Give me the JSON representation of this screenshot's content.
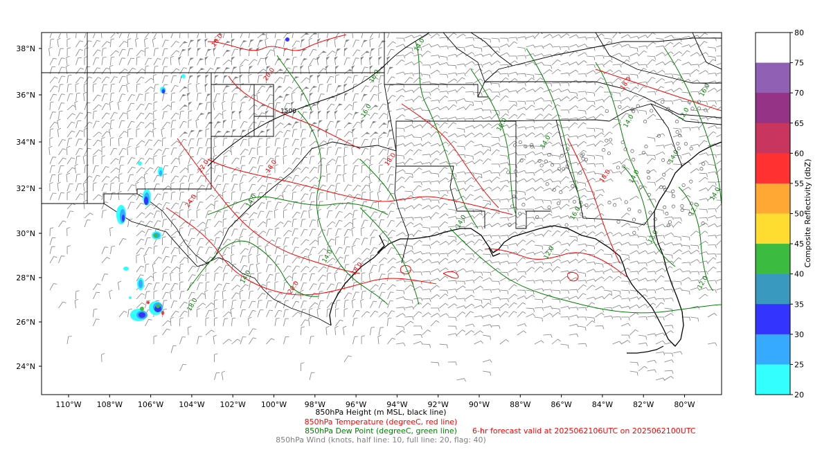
{
  "map": {
    "lat_labels": [
      "38°N",
      "36°N",
      "34°N",
      "32°N",
      "30°N",
      "28°N",
      "26°N",
      "24°N"
    ],
    "lon_labels": [
      "110°W",
      "108°W",
      "106°W",
      "104°W",
      "102°W",
      "100°W",
      "98°W",
      "96°W",
      "94°W",
      "92°W",
      "90°W",
      "88°W",
      "86°W",
      "84°W",
      "82°W",
      "80°W"
    ],
    "height_contour_label": "1500",
    "colors": {
      "height": "#000000",
      "temperature": "#ff0000",
      "dewpoint": "#008000",
      "wind": "#808080",
      "coast": "#000000"
    },
    "contour_labels_temperature": [
      "18.0",
      "20.0",
      "22.0",
      "24.0",
      "18.0",
      "20.0",
      "18.0",
      "18.0",
      "18.0",
      "18.0"
    ],
    "contour_labels_dewpoint": [
      "14.0",
      "16.0",
      "14.0",
      "16.0",
      "14.0",
      "12.0",
      "14.0",
      "16.0",
      "14.0",
      "14.0",
      "16.0",
      "12.0",
      "14.0",
      "12.0",
      "14.0",
      "18.0",
      "14.0",
      "16.0",
      "12.0",
      "12.0",
      "14.0"
    ]
  },
  "colorbar": {
    "label": "Composite Reflectivity (dbZ)",
    "ticks": [
      "80",
      "75",
      "70",
      "65",
      "60",
      "55",
      "50",
      "45",
      "40",
      "35",
      "30",
      "25",
      "20"
    ],
    "colors": [
      "#ffffff",
      "#9060b5",
      "#953387",
      "#c8365d",
      "#ff3131",
      "#ffa833",
      "#ffdc30",
      "#3bbc40",
      "#3a99bf",
      "#3434ff",
      "#35aaff",
      "#33ffff"
    ]
  },
  "captions": {
    "height": "850hPa Height (m MSL, black line)",
    "temperature": "850hPa Temperature (degreeC, red line)",
    "dewpoint": "850hPa Dew Point (degreeC, green line)",
    "valid": "6-hr forecast valid at 2025062106UTC on 2025062100UTC",
    "wind": "850hPa Wind (knots, half line: 10, full line: 20, flag: 40)"
  }
}
